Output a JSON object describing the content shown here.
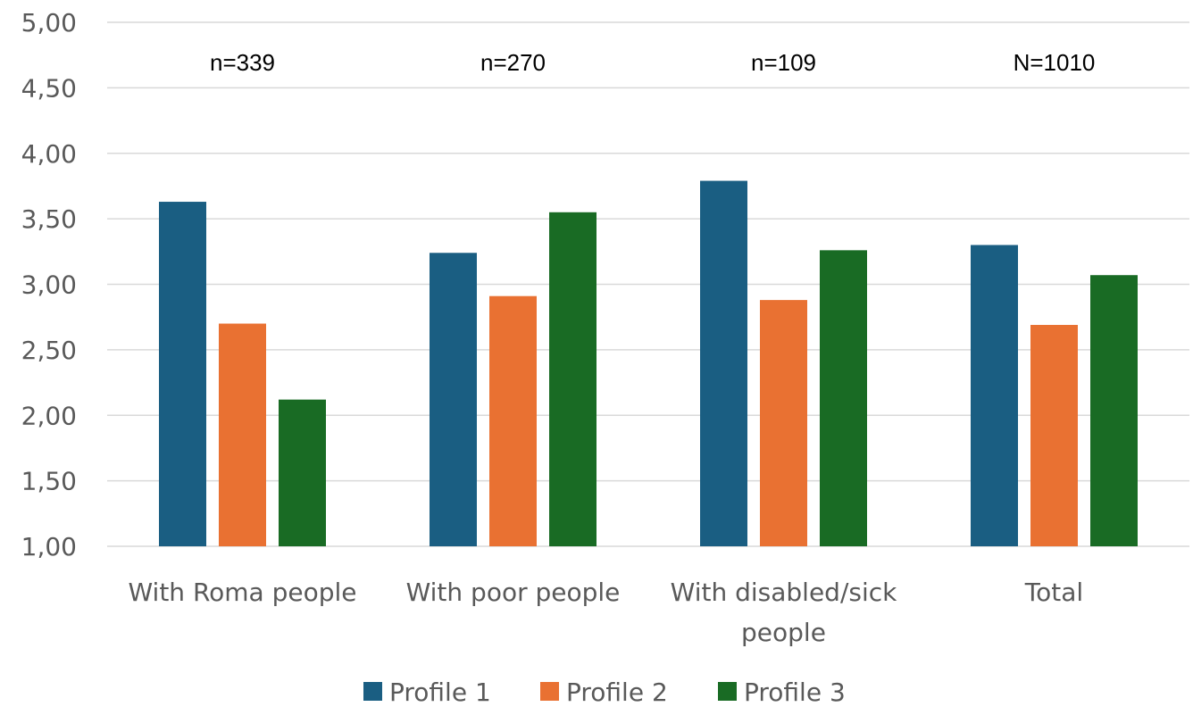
{
  "chart_data": {
    "type": "bar",
    "title": "",
    "xlabel": "",
    "ylabel": "",
    "ylim": [
      1.0,
      5.0
    ],
    "yticks": [
      "1,00",
      "1,50",
      "2,00",
      "2,50",
      "3,00",
      "3,50",
      "4,00",
      "4,50",
      "5,00"
    ],
    "ytick_values": [
      1.0,
      1.5,
      2.0,
      2.5,
      3.0,
      3.5,
      4.0,
      4.5,
      5.0
    ],
    "grid": true,
    "legend_position": "bottom",
    "categories": [
      [
        "With Roma people"
      ],
      [
        "With poor people"
      ],
      [
        "With disabled/sick",
        "people"
      ],
      [
        "Total"
      ]
    ],
    "annotations": [
      "n=339",
      "n=270",
      "n=109",
      "N=1010"
    ],
    "series": [
      {
        "name": "Profile 1",
        "color": "#1a5e82",
        "values": [
          3.63,
          3.24,
          3.79,
          3.3
        ]
      },
      {
        "name": "Profile 2",
        "color": "#e97132",
        "values": [
          2.7,
          2.91,
          2.88,
          2.69
        ]
      },
      {
        "name": "Profile 3",
        "color": "#196b24",
        "values": [
          2.12,
          3.55,
          3.26,
          3.07
        ]
      }
    ]
  }
}
